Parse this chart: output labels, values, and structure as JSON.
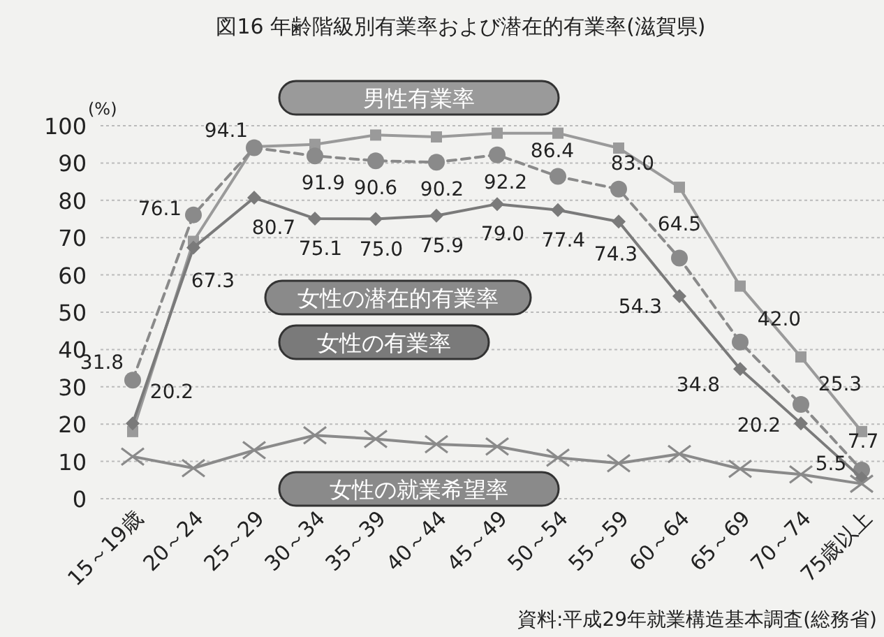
{
  "chart_data": {
    "type": "line",
    "title": "図16 年齢階級別有業率および潜在的有業率(滋賀県)",
    "ylabel": "(%)",
    "categories": [
      "15～19歳",
      "20～24",
      "25～29",
      "30～34",
      "35～39",
      "40～44",
      "45～49",
      "50～54",
      "55～59",
      "60～64",
      "65～69",
      "70～74",
      "75歳以上"
    ],
    "ylim": [
      0,
      100
    ],
    "yticks": [
      0,
      10,
      20,
      30,
      40,
      50,
      60,
      70,
      80,
      90,
      100
    ],
    "grid": "y",
    "series": [
      {
        "name": "男性有業率",
        "color": "#9a9a9a",
        "marker": "square",
        "line_style": "solid",
        "values": [
          18,
          69,
          94.4,
          95,
          97.5,
          97,
          98,
          98,
          94,
          83.5,
          57,
          38,
          18
        ]
      },
      {
        "name": "女性の潜在的有業率",
        "color": "#8a8a8a",
        "marker": "circle",
        "line_style": "dashed",
        "value_labels": [
          "31.8",
          "76.1",
          "94.1",
          "91.9",
          "90.6",
          "90.2",
          "92.2",
          "86.4",
          "83.0",
          "64.5",
          "42.0",
          "25.3",
          "7.7"
        ],
        "values": [
          31.8,
          76.1,
          94.1,
          91.9,
          90.6,
          90.2,
          92.2,
          86.4,
          83.0,
          64.5,
          42.0,
          25.3,
          7.7
        ]
      },
      {
        "name": "女性の有業率",
        "color": "#7a7a7a",
        "marker": "diamond",
        "line_style": "solid",
        "value_labels": [
          "20.2",
          "67.3",
          "80.7",
          "75.1",
          "75.0",
          "75.9",
          "79.0",
          "77.4",
          "74.3",
          "54.3",
          "34.8",
          "20.2",
          "5.5"
        ],
        "values": [
          20.2,
          67.3,
          80.7,
          75.1,
          75.0,
          75.9,
          79.0,
          77.4,
          74.3,
          54.3,
          34.8,
          20.2,
          5.5
        ]
      },
      {
        "name": "女性の就業希望率",
        "color": "#8a8a8a",
        "marker": "cross",
        "line_style": "solid",
        "values": [
          11.3,
          8.2,
          13,
          17,
          16,
          14.6,
          14,
          11,
          9.5,
          12,
          8,
          6.5,
          4
        ]
      }
    ],
    "annotations": [
      "資料:平成29年就業構造基本調査(総務省)"
    ]
  }
}
